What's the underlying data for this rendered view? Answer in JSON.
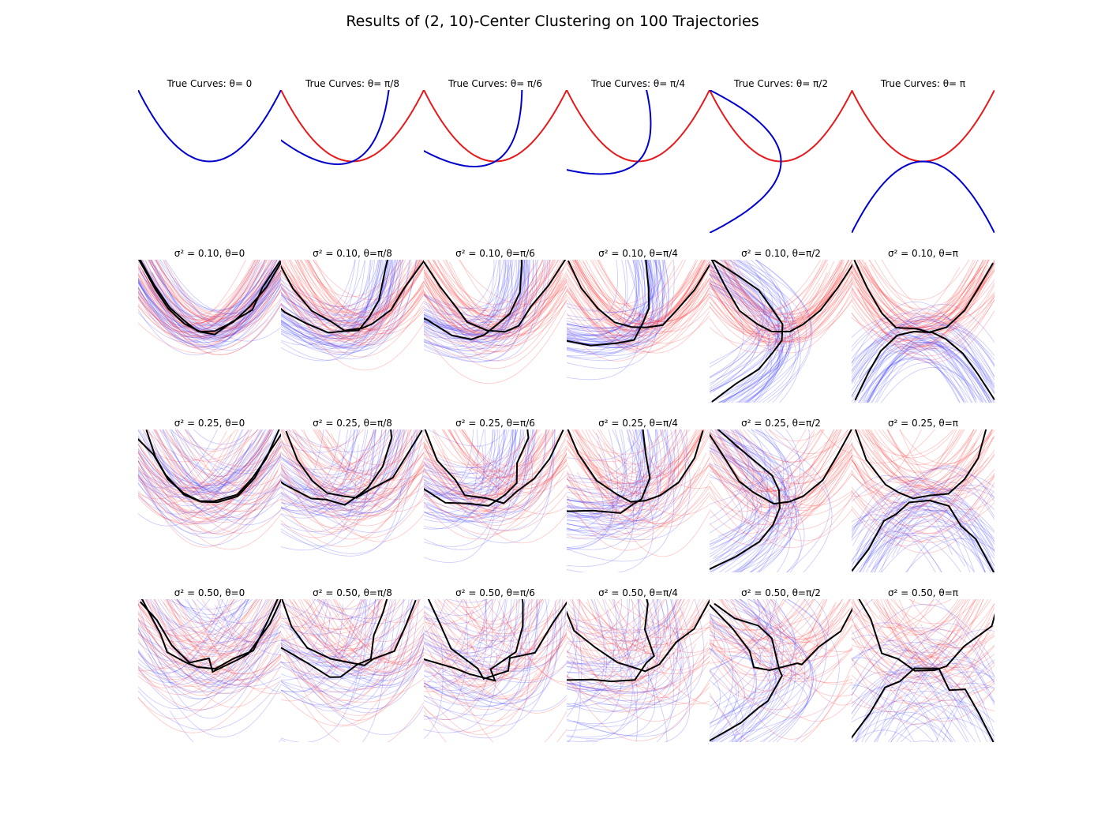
{
  "figure": {
    "title": "Results of (2, 10)-Center Clustering on 100 Trajectories"
  },
  "colors": {
    "curve_red": "#e41a1c",
    "curve_blue": "#0000cc",
    "traj_red": "#ff3030",
    "traj_blue": "#3b3bff",
    "center": "#000000"
  },
  "rows": [
    {
      "label_prefix": "True Curves:",
      "sigma2": null,
      "type": "truth",
      "titles": [
        "True Curves: θ= 0",
        "True Curves: θ= π/8",
        "True Curves: θ= π/6",
        "True Curves: θ= π/4",
        "True Curves: θ= π/2",
        "True Curves: θ= π"
      ]
    },
    {
      "sigma2": 0.1,
      "type": "noisy",
      "titles": [
        "σ² = 0.10, θ=0",
        "σ² = 0.10, θ=π/8",
        "σ² = 0.10, θ=π/6",
        "σ² = 0.10, θ=π/4",
        "σ² = 0.10, θ=π/2",
        "σ² = 0.10, θ=π"
      ]
    },
    {
      "sigma2": 0.25,
      "type": "noisy",
      "titles": [
        "σ² = 0.25, θ=0",
        "σ² = 0.25, θ=π/8",
        "σ² = 0.25, θ=π/6",
        "σ² = 0.25, θ=π/4",
        "σ² = 0.25, θ=π/2",
        "σ² = 0.25, θ=π"
      ]
    },
    {
      "sigma2": 0.5,
      "type": "noisy",
      "titles": [
        "σ² = 0.50, θ=0",
        "σ² = 0.50, θ=π/8",
        "σ² = 0.50, θ=π/6",
        "σ² = 0.50, θ=π/4",
        "σ² = 0.50, θ=π/2",
        "σ² = 0.50, θ=π"
      ]
    }
  ],
  "chart_data": {
    "type": "line",
    "description_of_series": [
      {
        "name": "",
        "values": [],
        "color": "#e41a1c"
      },
      {
        "name": "",
        "values": [],
        "color": "#0000cc"
      }
    ],
    "thetas": [
      0,
      0.3927,
      0.5236,
      0.7854,
      1.5708,
      3.1416
    ],
    "sigma2": [
      0.1,
      0.25,
      0.5
    ],
    "num_trajectories": 100,
    "k": 2,
    "l": 10,
    "true_curve_x": [
      -1.0,
      -0.8,
      -0.6,
      -0.4,
      -0.2,
      0.0,
      0.2,
      0.4,
      0.6,
      0.8,
      1.0
    ],
    "true_curve_y": [
      1.0,
      0.64,
      0.36,
      0.16,
      0.04,
      0.0,
      0.04,
      0.16,
      0.36,
      0.64,
      1.0
    ],
    "axes_visible": false,
    "grid": false
  }
}
